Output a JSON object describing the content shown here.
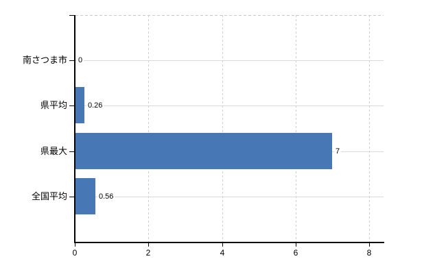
{
  "chart_data": {
    "type": "bar",
    "orientation": "horizontal",
    "categories": [
      "南さつま市",
      "県平均",
      "県最大",
      "全国平均"
    ],
    "values": [
      0,
      0.26,
      7,
      0.56
    ],
    "value_labels": [
      "0",
      "0.26",
      "7",
      "0.56"
    ],
    "x_tick_labels": [
      "0",
      "2",
      "4",
      "6",
      "8"
    ],
    "x_tick_values": [
      0,
      2,
      4,
      6,
      8
    ],
    "xlim": [
      0,
      8.4
    ],
    "grid": true,
    "legend": false,
    "bar_color": "#4777b4",
    "hgrid_color": "#d9d9d9",
    "vgrid_color": "#c8c8c8",
    "axis_color": "#000000",
    "text_color": "#000000"
  }
}
